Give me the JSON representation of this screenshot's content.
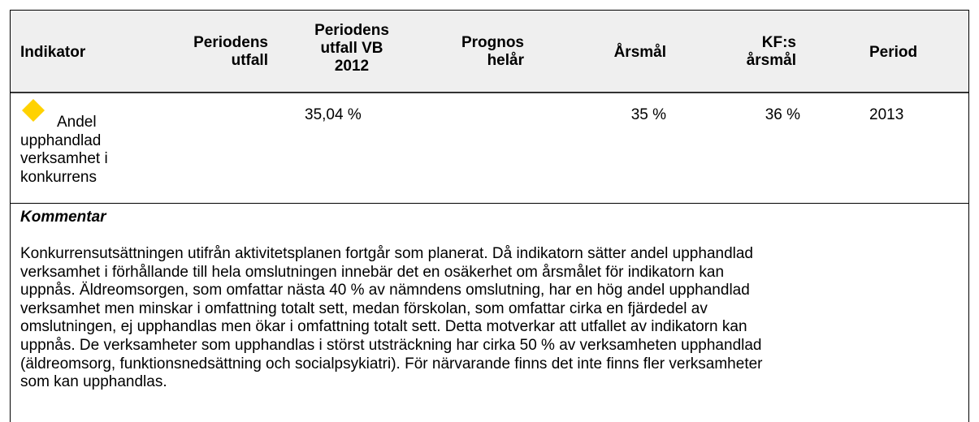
{
  "header": {
    "columns": [
      "Indikator",
      "Periodens utfall",
      "Periodens utfall VB 2012",
      "Prognos helår",
      "Årsmål",
      "KF:s årsmål",
      "Period"
    ]
  },
  "rows": [
    {
      "indicator": "Andel upphandlad verksamhet i konkurrens",
      "utfall": "",
      "utfall_vb_2012": "35,04 %",
      "prognos": "",
      "arsmal": "35 %",
      "kf_arsmal": "36 %",
      "period": "2013"
    }
  ],
  "comment": {
    "title": "Kommentar",
    "lines": [
      "Konkurrensutsättningen utifrån aktivitetsplanen fortgår som planerat. Då indikatorn sätter andel upphandlad",
      "verksamhet i förhållande till hela omslutningen innebär det en osäkerhet om årsmålet för indikatorn kan",
      "uppnås. Äldreomsorgen, som omfattar nästa 40 % av nämndens omslutning, har en hög andel upphandlad",
      "verksamhet men minskar i omfattning totalt sett, medan förskolan, som omfattar cirka en fjärdedel av",
      "omslutningen, ej upphandlas men ökar i omfattning totalt sett. Detta motverkar att utfallet av indikatorn kan",
      "uppnås. De verksamheter som upphandlas i störst utsträckning har cirka 50 % av verksamheten upphandlad",
      "(äldreomsorg, funktionsnedsättning och socialpsykiatri). För närvarande finns det inte finns fler verksamheter",
      "som kan upphandlas."
    ]
  }
}
